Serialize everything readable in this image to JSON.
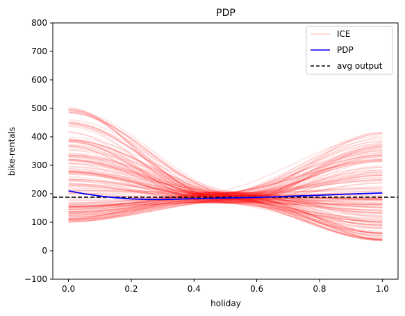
{
  "chart_data": {
    "type": "line",
    "title": "PDP",
    "xlabel": "holiday",
    "ylabel": "bike-rentals",
    "xlim": [
      -0.05,
      1.05
    ],
    "ylim": [
      -100,
      800
    ],
    "x_ticks": [
      "0.0",
      "0.2",
      "0.4",
      "0.6",
      "0.8",
      "1.0"
    ],
    "y_ticks": [
      "−100",
      "0",
      "100",
      "200",
      "300",
      "400",
      "500",
      "600",
      "700",
      "800"
    ],
    "grid": false,
    "legend": {
      "placement": "top-right",
      "entries": [
        {
          "label": "ICE",
          "color": "#ff0000",
          "style": "solid-faint"
        },
        {
          "label": "PDP",
          "color": "#0000ff",
          "style": "solid"
        },
        {
          "label": "avg output",
          "color": "#000000",
          "style": "dashed"
        }
      ]
    },
    "x": [
      0.0,
      0.05,
      0.1,
      0.15,
      0.2,
      0.25,
      0.3,
      0.35,
      0.4,
      0.45,
      0.5,
      0.55,
      0.6,
      0.65,
      0.7,
      0.75,
      0.8,
      0.85,
      0.9,
      0.95,
      1.0
    ],
    "series": [
      {
        "name": "PDP",
        "color": "#0000ff",
        "values": [
          210,
          200,
          192,
          186,
          182,
          180,
          180,
          181,
          183,
          184,
          185,
          186,
          187,
          189,
          191,
          193,
          195,
          197,
          199,
          201,
          203
        ]
      }
    ],
    "avg_output": 188,
    "ice": {
      "color": "#ff0000",
      "opacity": 0.12,
      "count": 160,
      "center_x": 0.5,
      "center_y": 187,
      "start_range": [
        100,
        510
      ],
      "end_range": [
        35,
        420
      ]
    }
  }
}
